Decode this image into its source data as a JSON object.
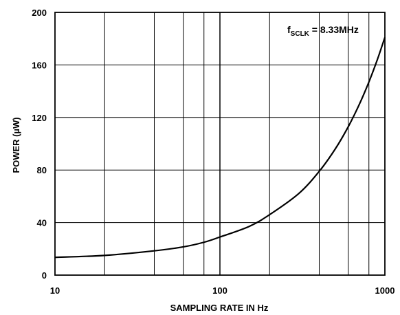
{
  "chart_data": {
    "type": "line",
    "title": "",
    "xlabel": "SAMPLING RATE IN Hz",
    "ylabel": "POWER (µW)",
    "xscale": "log",
    "xlim": [
      10,
      1000
    ],
    "ylim": [
      0,
      200
    ],
    "grid": true,
    "x_ticks": [
      "10",
      "100",
      "1000"
    ],
    "y_ticks": [
      "0",
      "40",
      "80",
      "120",
      "160",
      "200"
    ],
    "annotation": {
      "prefix": "f",
      "subscript": "SCLK",
      "suffix": " = 8.33MHz"
    },
    "series": [
      {
        "name": "",
        "x": [
          10,
          20,
          40,
          60,
          80,
          100,
          150,
          200,
          300,
          400,
          500,
          600,
          700,
          800,
          900,
          1000
        ],
        "y": [
          13.5,
          15,
          18.5,
          21.5,
          25,
          29,
          37,
          46,
          62,
          79,
          96,
          113,
          130,
          147,
          164,
          181
        ]
      }
    ]
  }
}
